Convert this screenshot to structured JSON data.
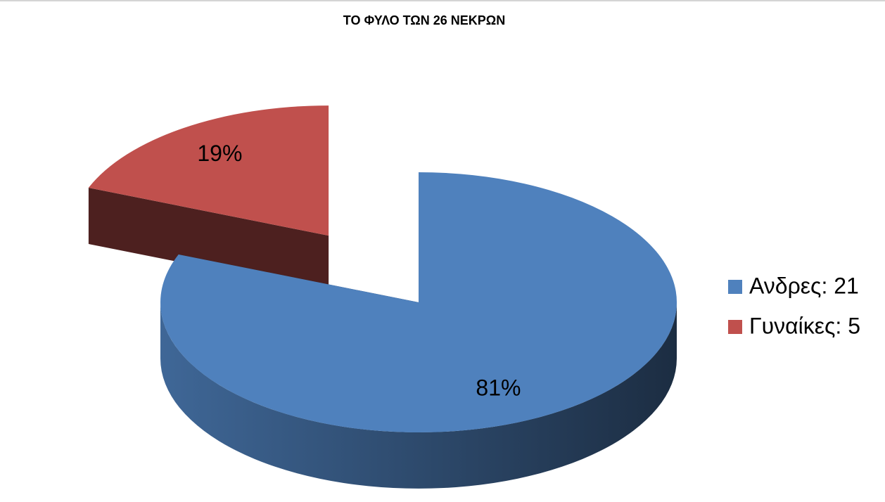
{
  "chart_data": {
    "type": "pie",
    "title": "ΤΟ ΦΥΛΟ ΤΩΝ 26 ΝΕΚΡΩΝ",
    "categories": [
      "Ανδρες: 21",
      "Γυναίκες: 5"
    ],
    "values": [
      81,
      19
    ],
    "value_labels": [
      "81%",
      "19%"
    ],
    "colors": [
      "#4f81bd",
      "#c0504d"
    ],
    "exploded": [
      false,
      true
    ],
    "legend": "right"
  }
}
